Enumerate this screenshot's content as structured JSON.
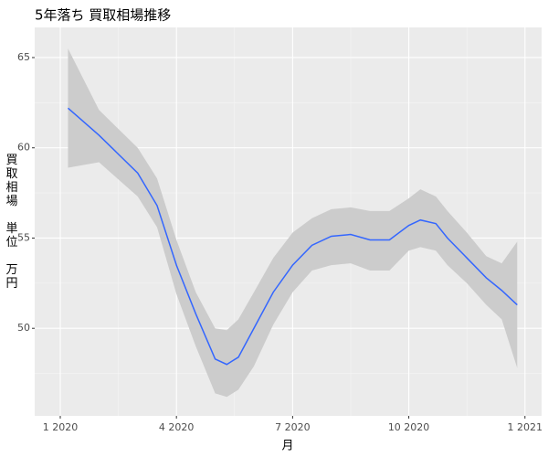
{
  "chart_data": {
    "type": "smooth",
    "title": "5年落ち 買取相場推移",
    "xlabel": "月",
    "ylabel": "買取相場 単位 万円",
    "x": [
      0.2,
      1,
      2,
      2.5,
      3,
      3.5,
      4,
      4.3,
      4.6,
      5,
      5.5,
      6,
      6.5,
      7,
      7.5,
      8,
      8.5,
      9,
      9.3,
      9.7,
      10,
      10.5,
      11,
      11.4,
      11.8
    ],
    "values": [
      62.2,
      60.7,
      58.6,
      56.8,
      53.5,
      50.8,
      48.3,
      48.0,
      48.4,
      50.0,
      52.0,
      53.5,
      54.6,
      55.1,
      55.2,
      54.9,
      54.9,
      55.7,
      56.0,
      55.8,
      55.0,
      53.9,
      52.8,
      52.1,
      51.3
    ],
    "lower": [
      58.9,
      59.2,
      57.3,
      55.6,
      51.9,
      49.0,
      46.4,
      46.2,
      46.6,
      47.9,
      50.2,
      52.0,
      53.2,
      53.5,
      53.6,
      53.2,
      53.2,
      54.3,
      54.5,
      54.3,
      53.5,
      52.5,
      51.3,
      50.5,
      47.8
    ],
    "upper": [
      65.5,
      62.1,
      60.0,
      58.3,
      54.9,
      52.0,
      50.0,
      49.9,
      50.5,
      52.0,
      53.9,
      55.3,
      56.1,
      56.6,
      56.7,
      56.5,
      56.5,
      57.2,
      57.7,
      57.3,
      56.5,
      55.3,
      54.0,
      53.6,
      54.8
    ],
    "color": "#3366ff",
    "band_color": "#cccccc",
    "xlim": [
      -0.66,
      12.43
    ],
    "ylim": [
      45.15,
      66.67
    ],
    "xticks": [
      {
        "value": 0,
        "label": "1 2020"
      },
      {
        "value": 3,
        "label": "4 2020"
      },
      {
        "value": 6,
        "label": "7 2020"
      },
      {
        "value": 9,
        "label": "10 2020"
      },
      {
        "value": 12,
        "label": "1 2021"
      }
    ],
    "yticks": [
      50,
      55,
      60,
      65
    ],
    "grid": true
  }
}
